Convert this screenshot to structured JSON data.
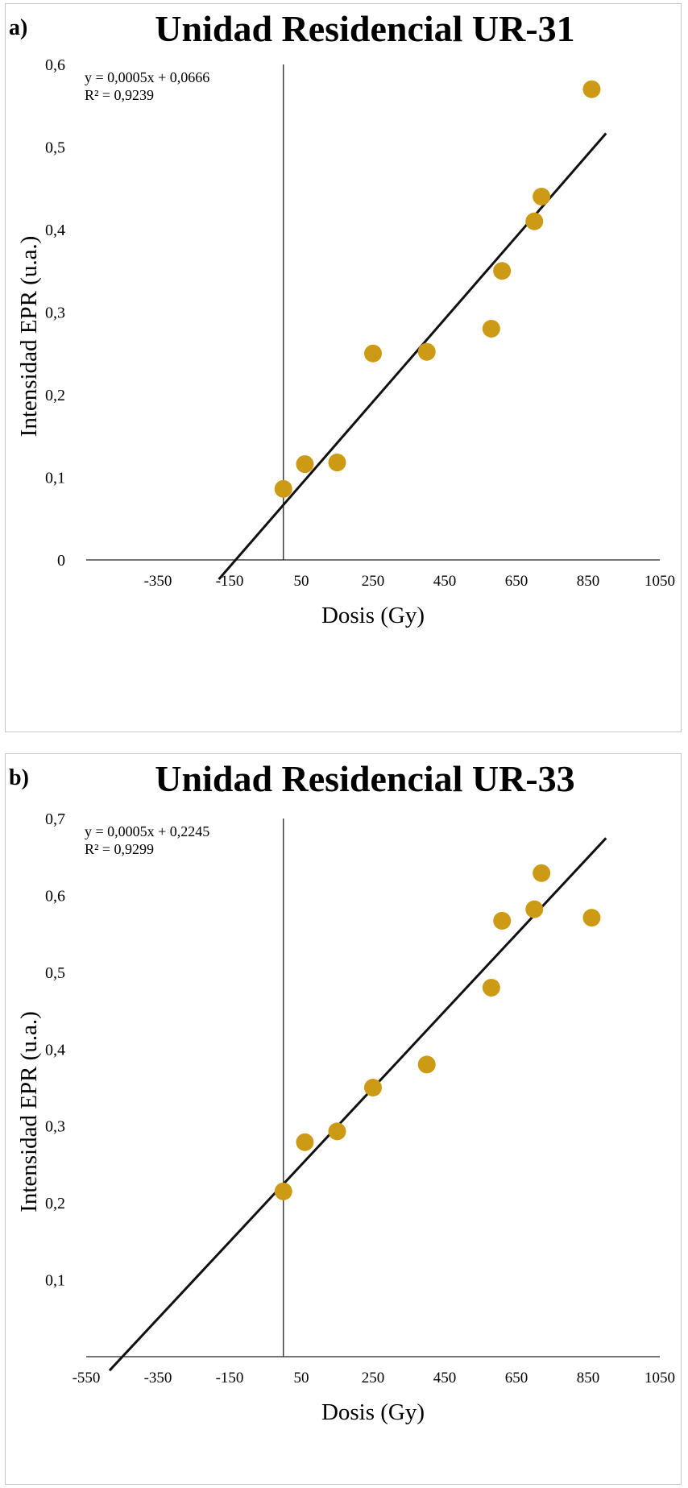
{
  "chart_data": [
    {
      "type": "scatter",
      "panel_label": "a)",
      "title": "Unidad Residencial UR-31",
      "xlabel": "Dosis (Gy)",
      "ylabel": "Intensidad EPR (u.a.)",
      "xlim": [
        -550,
        1050
      ],
      "ylim": [
        0,
        0.6
      ],
      "xticks": [
        "-350",
        "-150",
        "50",
        "250",
        "450",
        "650",
        "850",
        "1050"
      ],
      "yticks": [
        "0",
        "0,1",
        "0,2",
        "0,3",
        "0,4",
        "0,5",
        "0,6"
      ],
      "equation": "y = 0,0005x + 0,0666",
      "r2": "R² = 0,9239",
      "points": [
        {
          "x": 0,
          "y": 0.086
        },
        {
          "x": 60,
          "y": 0.116
        },
        {
          "x": 150,
          "y": 0.118
        },
        {
          "x": 250,
          "y": 0.25
        },
        {
          "x": 400,
          "y": 0.252
        },
        {
          "x": 580,
          "y": 0.28
        },
        {
          "x": 610,
          "y": 0.35
        },
        {
          "x": 700,
          "y": 0.41
        },
        {
          "x": 720,
          "y": 0.44
        },
        {
          "x": 860,
          "y": 0.57
        }
      ],
      "trendline": {
        "slope": 0.0005,
        "intercept": 0.0666,
        "x_range": [
          -180,
          900
        ]
      },
      "marker_color": "#CC9A14",
      "grid": false
    },
    {
      "type": "scatter",
      "panel_label": "b)",
      "title": "Unidad Residencial  UR-33",
      "xlabel": "Dosis (Gy)",
      "ylabel": "Intensidad EPR (u.a.)",
      "xlim": [
        -550,
        1050
      ],
      "ylim": [
        0,
        0.7
      ],
      "xticks": [
        "-550",
        "-350",
        "-150",
        "50",
        "250",
        "450",
        "650",
        "850",
        "1050"
      ],
      "yticks": [
        "0,1",
        "0,2",
        "0,3",
        "0,4",
        "0,5",
        "0,6",
        "0,7"
      ],
      "equation": "y = 0,0005x + 0,2245",
      "r2": "R² = 0,9299",
      "points": [
        {
          "x": 0,
          "y": 0.215
        },
        {
          "x": 60,
          "y": 0.279
        },
        {
          "x": 150,
          "y": 0.293
        },
        {
          "x": 250,
          "y": 0.35
        },
        {
          "x": 400,
          "y": 0.38
        },
        {
          "x": 580,
          "y": 0.48
        },
        {
          "x": 610,
          "y": 0.567
        },
        {
          "x": 700,
          "y": 0.582
        },
        {
          "x": 720,
          "y": 0.629
        },
        {
          "x": 860,
          "y": 0.571
        }
      ],
      "trendline": {
        "slope": 0.0005,
        "intercept": 0.2245,
        "x_range": [
          -485,
          900
        ]
      },
      "marker_color": "#CC9A14",
      "grid": false
    }
  ]
}
